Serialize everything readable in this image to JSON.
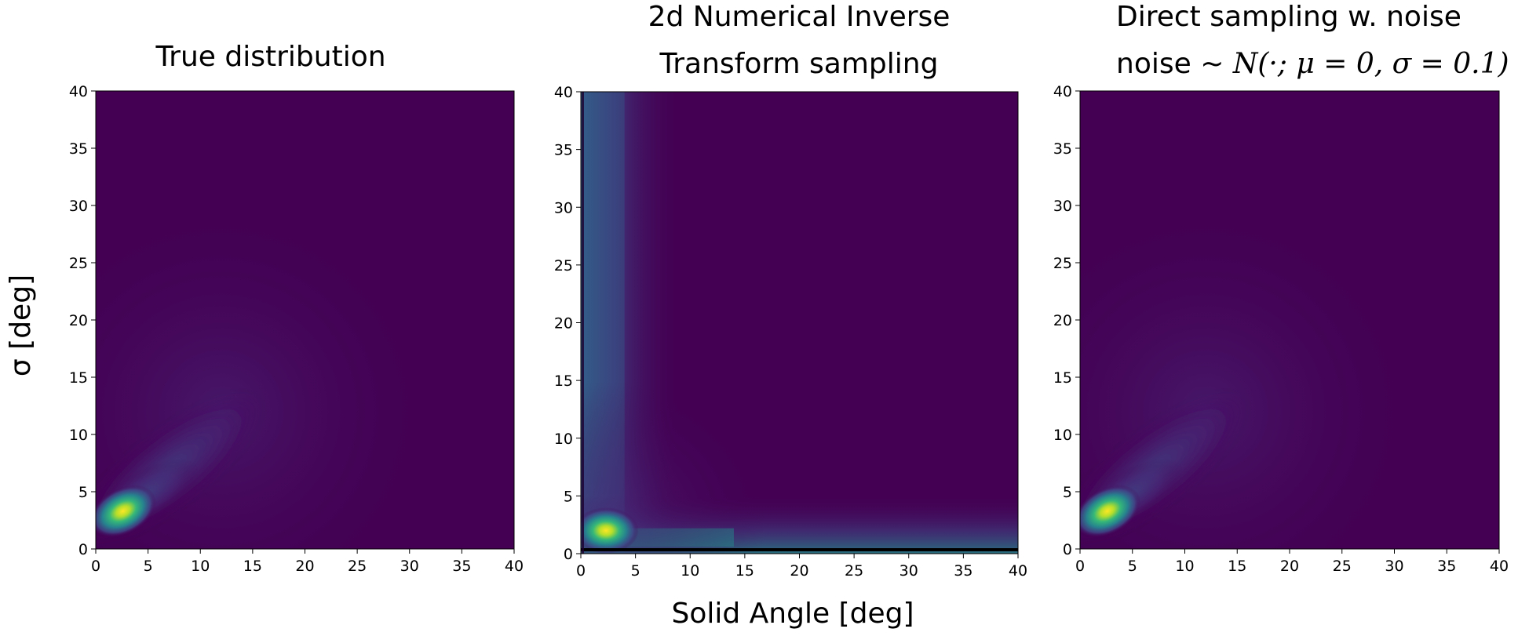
{
  "chart_data": [
    {
      "type": "heatmap",
      "title_lines": [
        "True distribution"
      ],
      "xlabel": "",
      "ylabel": "σ  [deg]",
      "xlim": [
        0,
        40
      ],
      "ylim": [
        0,
        40
      ],
      "xticks": [
        "0",
        "5",
        "10",
        "15",
        "20",
        "25",
        "30",
        "35",
        "40"
      ],
      "yticks": [
        "0",
        "5",
        "10",
        "15",
        "20",
        "25",
        "30",
        "35",
        "40"
      ],
      "colormap": "viridis",
      "density_peak": {
        "x": 2,
        "y": 3
      },
      "density_spread": "tail extending from low solid angle toward larger angle and σ",
      "baseline_band": false
    },
    {
      "type": "heatmap",
      "title_lines": [
        "2d Numerical Inverse",
        "Transform sampling"
      ],
      "xlabel": "Solid Angle [deg]",
      "ylabel": "",
      "xlim": [
        0,
        40
      ],
      "ylim": [
        0,
        40
      ],
      "xticks": [
        "0",
        "5",
        "10",
        "15",
        "20",
        "25",
        "30",
        "35",
        "40"
      ],
      "yticks": [
        "0",
        "5",
        "10",
        "15",
        "20",
        "25",
        "30",
        "35",
        "40"
      ],
      "colormap": "viridis",
      "density_peak": {
        "x": 2,
        "y": 2
      },
      "density_spread": "vertical band near solid angle 0-5 and horizontal band near σ 0-3",
      "baseline_band": true
    },
    {
      "type": "heatmap",
      "title_lines": [
        "Direct sampling w. noise"
      ],
      "title_math_prefix": "noise ~ ",
      "title_math": "N(·; μ = 0, σ = 0.1)",
      "xlabel": "",
      "ylabel": "",
      "xlim": [
        0,
        40
      ],
      "ylim": [
        0,
        40
      ],
      "xticks": [
        "0",
        "5",
        "10",
        "15",
        "20",
        "25",
        "30",
        "35",
        "40"
      ],
      "yticks": [
        "0",
        "5",
        "10",
        "15",
        "20",
        "25",
        "30",
        "35",
        "40"
      ],
      "colormap": "viridis",
      "density_peak": {
        "x": 2,
        "y": 3
      },
      "density_spread": "tail extending from low solid angle toward larger angle and σ",
      "baseline_band": false
    }
  ],
  "colors": {
    "background": "#440154",
    "low": "#472878",
    "mid_low": "#3b528b",
    "mid": "#21918c",
    "mid_high": "#5ec962",
    "high": "#fde725"
  }
}
